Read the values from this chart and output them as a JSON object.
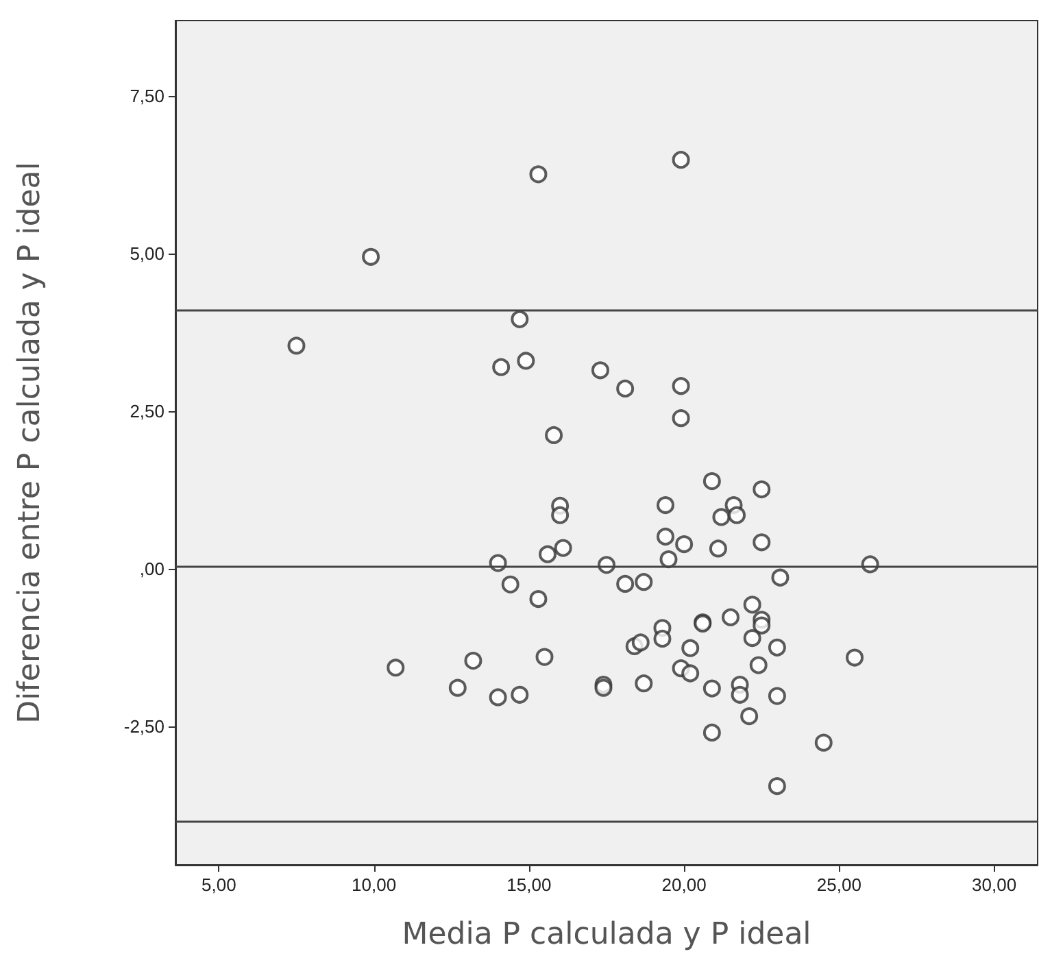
{
  "chart_data": {
    "type": "scatter",
    "xlabel": "Media P calculada y P ideal",
    "ylabel": "Diferencia entre P calculada y P ideal",
    "x": [
      15.3,
      9.9,
      14.7,
      7.5,
      14.1,
      14.9,
      17.3,
      15.8,
      19.9,
      18.1,
      19.9,
      19.9,
      20.9,
      22.5,
      16.0,
      16.0,
      16.1,
      15.6,
      14.0,
      17.5,
      14.4,
      15.3,
      10.7,
      13.2,
      12.7,
      14.0,
      14.7,
      15.5,
      17.4,
      17.4,
      19.4,
      21.6,
      21.2,
      21.7,
      19.4,
      20.0,
      21.1,
      22.5,
      19.5,
      26.0,
      18.1,
      18.7,
      23.1,
      22.2,
      20.6,
      20.6,
      21.5,
      22.5,
      22.5,
      22.2,
      19.3,
      19.3,
      18.4,
      18.6,
      20.2,
      23.0,
      25.5,
      19.9,
      20.2,
      22.4,
      18.7,
      20.9,
      21.8,
      21.8,
      23.0,
      22.1,
      20.9,
      24.5,
      23.0
    ],
    "values": [
      6.26,
      4.95,
      3.96,
      3.54,
      3.2,
      3.3,
      3.15,
      2.12,
      6.49,
      2.86,
      2.9,
      2.39,
      1.39,
      1.26,
      1.0,
      0.85,
      0.33,
      0.23,
      0.09,
      0.06,
      -0.25,
      -0.48,
      -1.57,
      -1.46,
      -1.89,
      -2.04,
      -2.0,
      -1.4,
      -1.84,
      -1.89,
      1.01,
      1.01,
      0.82,
      0.85,
      0.51,
      0.39,
      0.32,
      0.42,
      0.15,
      0.07,
      -0.24,
      -0.21,
      -0.14,
      -0.57,
      -0.85,
      -0.87,
      -0.77,
      -0.81,
      -0.9,
      -1.1,
      -0.94,
      -1.11,
      -1.23,
      -1.17,
      -1.26,
      -1.25,
      -1.41,
      -1.58,
      -1.66,
      -1.53,
      -1.82,
      -1.9,
      -1.84,
      -2.0,
      -2.02,
      -2.34,
      -2.6,
      -2.76,
      -3.45
    ],
    "color": "#333333",
    "marker": "circle",
    "xlim": [
      3.6,
      31.4
    ],
    "ylim": [
      -4.7,
      8.7
    ],
    "xticks": [
      {
        "value": 5,
        "label": "5,00"
      },
      {
        "value": 10,
        "label": "10,00"
      },
      {
        "value": 15,
        "label": "15,00"
      },
      {
        "value": 20,
        "label": "20,00"
      },
      {
        "value": 25,
        "label": "25,00"
      },
      {
        "value": 30,
        "label": "30,00"
      }
    ],
    "yticks": [
      {
        "value": -2.5,
        "label": "-2,50"
      },
      {
        "value": 0,
        "label": ",00"
      },
      {
        "value": 2.5,
        "label": "2,50"
      },
      {
        "value": 5,
        "label": "5,00"
      },
      {
        "value": 7.5,
        "label": "7,50"
      }
    ],
    "ref_lines": [
      {
        "axis": "y",
        "value": 4.1,
        "color": "#444444"
      },
      {
        "axis": "y",
        "value": 0.04,
        "color": "#444444"
      },
      {
        "axis": "y",
        "value": -4.01,
        "color": "#444444"
      }
    ]
  }
}
